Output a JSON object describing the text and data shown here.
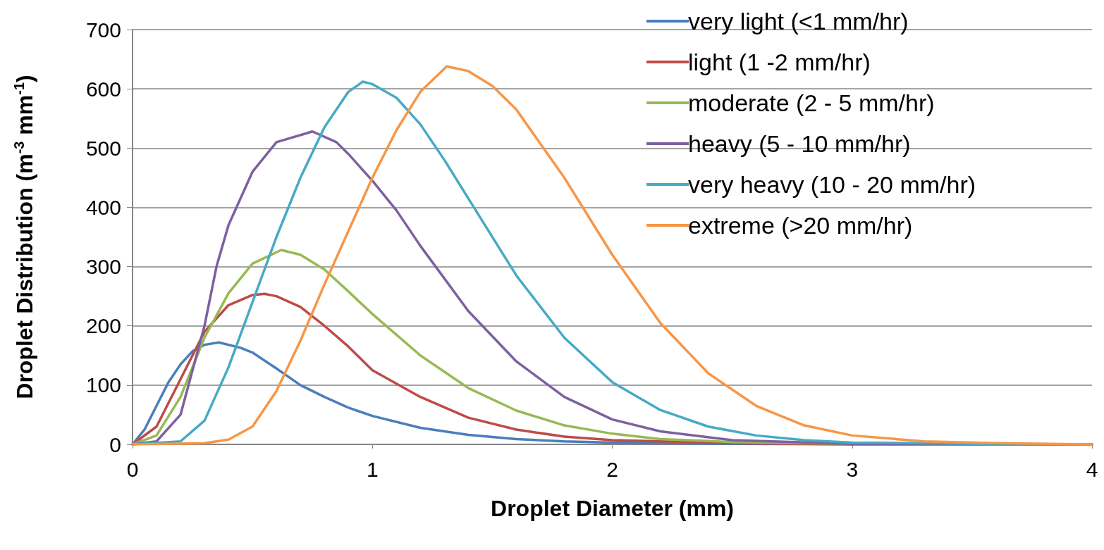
{
  "chart_data": {
    "type": "line",
    "xlabel": "Droplet Diameter (mm)",
    "ylabel": "Droplet Distribution (m$^{-3}$ mm$^{-1}$)",
    "xlim": [
      0,
      4
    ],
    "xticks": [
      0,
      1,
      2,
      3,
      4
    ],
    "ylim": [
      0,
      700
    ],
    "yticks": [
      0,
      100,
      200,
      300,
      400,
      500,
      600,
      700
    ],
    "grid": "y",
    "legend": "top right",
    "marker": "none",
    "line_style": "solid",
    "series": [
      {
        "name": "very light (<1 mm/hr)",
        "color": "#4a7ebb",
        "x": [
          0,
          0.05,
          0.1,
          0.15,
          0.2,
          0.25,
          0.3,
          0.36,
          0.45,
          0.5,
          0.6,
          0.7,
          0.8,
          0.9,
          1.0,
          1.2,
          1.4,
          1.6,
          1.8,
          2.0,
          2.5,
          3,
          4
        ],
        "values": [
          0,
          25,
          65,
          105,
          135,
          157,
          168,
          172,
          163,
          155,
          128,
          100,
          80,
          62,
          48,
          28,
          16,
          9,
          5,
          3,
          1,
          0,
          0
        ]
      },
      {
        "name": "light (1 -2 mm/hr)",
        "color": "#be4b48",
        "x": [
          0,
          0.1,
          0.2,
          0.3,
          0.4,
          0.5,
          0.55,
          0.6,
          0.7,
          0.8,
          0.9,
          1.0,
          1.2,
          1.4,
          1.6,
          1.8,
          2.0,
          2.5,
          3,
          4
        ],
        "values": [
          0,
          30,
          110,
          190,
          235,
          252,
          254,
          250,
          232,
          200,
          165,
          125,
          80,
          45,
          25,
          13,
          7,
          2,
          0,
          0
        ]
      },
      {
        "name": "moderate (2 - 5 mm/hr)",
        "color": "#98b954",
        "x": [
          0,
          0.1,
          0.2,
          0.3,
          0.4,
          0.5,
          0.62,
          0.7,
          0.8,
          0.9,
          1.0,
          1.2,
          1.4,
          1.6,
          1.8,
          2.0,
          2.2,
          2.5,
          3,
          4
        ],
        "values": [
          0,
          15,
          80,
          180,
          255,
          305,
          328,
          320,
          295,
          258,
          220,
          150,
          95,
          57,
          32,
          18,
          9,
          4,
          1,
          0
        ]
      },
      {
        "name": "heavy (5 - 10 mm/hr)",
        "color": "#7d60a0",
        "x": [
          0,
          0.1,
          0.2,
          0.3,
          0.35,
          0.4,
          0.5,
          0.6,
          0.75,
          0.85,
          0.9,
          1.0,
          1.1,
          1.2,
          1.4,
          1.6,
          1.8,
          2.0,
          2.2,
          2.5,
          3,
          4
        ],
        "values": [
          0,
          5,
          50,
          200,
          300,
          370,
          460,
          510,
          528,
          510,
          490,
          445,
          395,
          335,
          225,
          140,
          80,
          42,
          22,
          7,
          1,
          0
        ]
      },
      {
        "name": "very heavy (10 - 20 mm/hr)",
        "color": "#46aac5",
        "x": [
          0,
          0.2,
          0.3,
          0.4,
          0.5,
          0.6,
          0.7,
          0.8,
          0.9,
          0.96,
          1.0,
          1.1,
          1.2,
          1.3,
          1.4,
          1.6,
          1.8,
          2.0,
          2.2,
          2.4,
          2.6,
          2.8,
          3,
          3.5,
          4
        ],
        "values": [
          0,
          5,
          40,
          130,
          240,
          350,
          450,
          535,
          595,
          612,
          608,
          585,
          540,
          480,
          415,
          285,
          180,
          105,
          58,
          30,
          15,
          7,
          3,
          1,
          0
        ]
      },
      {
        "name": "extreme (>20 mm/hr)",
        "color": "#f79646",
        "x": [
          0,
          0.3,
          0.4,
          0.5,
          0.6,
          0.7,
          0.8,
          0.9,
          1.0,
          1.1,
          1.2,
          1.31,
          1.4,
          1.5,
          1.6,
          1.8,
          2.0,
          2.2,
          2.4,
          2.6,
          2.8,
          3.0,
          3.3,
          3.6,
          4
        ],
        "values": [
          0,
          2,
          8,
          30,
          90,
          175,
          270,
          360,
          450,
          530,
          595,
          638,
          630,
          605,
          565,
          450,
          320,
          205,
          120,
          65,
          32,
          15,
          5,
          2,
          0
        ]
      }
    ]
  }
}
